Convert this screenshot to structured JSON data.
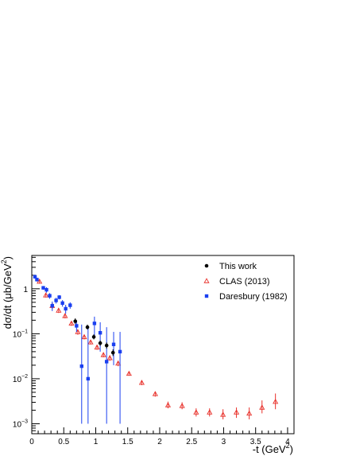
{
  "chart_data": {
    "type": "scatter",
    "title": "",
    "xlabel": "-t (GeV",
    "xlabel_sup": "2",
    "xlabel_tail": ")",
    "ylabel": "dσ/dt (μb/GeV",
    "ylabel_sup": "2",
    "ylabel_tail": ")",
    "xlim": [
      0,
      4.1
    ],
    "ylim": [
      0.0006,
      5.5
    ],
    "yscale": "log",
    "grid": false,
    "legend_position": "top-right",
    "x_ticks": [
      {
        "value": 0,
        "label": "0"
      },
      {
        "value": 0.5,
        "label": "0.5"
      },
      {
        "value": 1,
        "label": "1"
      },
      {
        "value": 1.5,
        "label": "1.5"
      },
      {
        "value": 2,
        "label": "2"
      },
      {
        "value": 2.5,
        "label": "2.5"
      },
      {
        "value": 3,
        "label": "3"
      },
      {
        "value": 3.5,
        "label": "3.5"
      },
      {
        "value": 4,
        "label": "4"
      }
    ],
    "y_ticks": [
      {
        "value": 1,
        "base": "1",
        "exp": ""
      },
      {
        "value": 0.1,
        "base": "10",
        "exp": "−1"
      },
      {
        "value": 0.01,
        "base": "10",
        "exp": "−2"
      },
      {
        "value": 0.001,
        "base": "10",
        "exp": "−3"
      }
    ],
    "series": [
      {
        "name": "This work",
        "marker": "circle",
        "color": "#000000",
        "points": [
          {
            "x": 0.68,
            "y": 0.19,
            "ylo": 0.165,
            "yhi": 0.22
          },
          {
            "x": 0.87,
            "y": 0.14,
            "ylo": 0.125,
            "yhi": 0.16
          },
          {
            "x": 0.97,
            "y": 0.085,
            "ylo": 0.075,
            "yhi": 0.097
          },
          {
            "x": 1.07,
            "y": 0.062,
            "ylo": 0.054,
            "yhi": 0.071
          },
          {
            "x": 1.17,
            "y": 0.055,
            "ylo": 0.047,
            "yhi": 0.064
          },
          {
            "x": 1.27,
            "y": 0.038,
            "ylo": 0.032,
            "yhi": 0.045
          }
        ]
      },
      {
        "name": "CLAS (2013)",
        "marker": "triangle",
        "color": "#e8302a",
        "points": [
          {
            "x": 0.12,
            "y": 1.45,
            "ylo": 1.3,
            "yhi": 1.6
          },
          {
            "x": 0.22,
            "y": 0.72,
            "ylo": 0.64,
            "yhi": 0.8
          },
          {
            "x": 0.32,
            "y": 0.42,
            "ylo": 0.36,
            "yhi": 0.48
          },
          {
            "x": 0.42,
            "y": 0.33,
            "ylo": 0.29,
            "yhi": 0.37
          },
          {
            "x": 0.52,
            "y": 0.25,
            "ylo": 0.22,
            "yhi": 0.28
          },
          {
            "x": 0.62,
            "y": 0.17,
            "ylo": 0.15,
            "yhi": 0.19
          },
          {
            "x": 0.72,
            "y": 0.11,
            "ylo": 0.095,
            "yhi": 0.125
          },
          {
            "x": 0.82,
            "y": 0.085,
            "ylo": 0.075,
            "yhi": 0.095
          },
          {
            "x": 0.92,
            "y": 0.065,
            "ylo": 0.058,
            "yhi": 0.073
          },
          {
            "x": 1.02,
            "y": 0.05,
            "ylo": 0.044,
            "yhi": 0.056
          },
          {
            "x": 1.12,
            "y": 0.034,
            "ylo": 0.03,
            "yhi": 0.038
          },
          {
            "x": 1.22,
            "y": 0.029,
            "ylo": 0.025,
            "yhi": 0.033
          },
          {
            "x": 1.35,
            "y": 0.022,
            "ylo": 0.019,
            "yhi": 0.025
          },
          {
            "x": 1.52,
            "y": 0.013,
            "ylo": 0.0117,
            "yhi": 0.0143
          },
          {
            "x": 1.72,
            "y": 0.0082,
            "ylo": 0.0072,
            "yhi": 0.0092
          },
          {
            "x": 1.93,
            "y": 0.0046,
            "ylo": 0.004,
            "yhi": 0.0052
          },
          {
            "x": 2.13,
            "y": 0.0026,
            "ylo": 0.0022,
            "yhi": 0.0031
          },
          {
            "x": 2.35,
            "y": 0.0025,
            "ylo": 0.0021,
            "yhi": 0.003
          },
          {
            "x": 2.57,
            "y": 0.0018,
            "ylo": 0.00145,
            "yhi": 0.0022
          },
          {
            "x": 2.78,
            "y": 0.0018,
            "ylo": 0.00145,
            "yhi": 0.0022
          },
          {
            "x": 2.99,
            "y": 0.0016,
            "ylo": 0.00125,
            "yhi": 0.0021
          },
          {
            "x": 3.2,
            "y": 0.0018,
            "ylo": 0.00135,
            "yhi": 0.0023
          },
          {
            "x": 3.4,
            "y": 0.0017,
            "ylo": 0.00125,
            "yhi": 0.0023
          },
          {
            "x": 3.6,
            "y": 0.0023,
            "ylo": 0.0017,
            "yhi": 0.0033
          },
          {
            "x": 3.81,
            "y": 0.0031,
            "ylo": 0.0021,
            "yhi": 0.0047
          }
        ]
      },
      {
        "name": "Daresbury (1982)",
        "marker": "square",
        "color": "#1a3ff0",
        "points": [
          {
            "x": 0.05,
            "y": 1.85,
            "ylo": 1.7,
            "yhi": 2.0
          },
          {
            "x": 0.08,
            "y": 1.6,
            "ylo": 1.45,
            "yhi": 1.75
          },
          {
            "x": 0.18,
            "y": 1.05,
            "ylo": 0.95,
            "yhi": 1.15
          },
          {
            "x": 0.23,
            "y": 0.95,
            "ylo": 0.82,
            "yhi": 1.08
          },
          {
            "x": 0.28,
            "y": 0.7,
            "ylo": 0.6,
            "yhi": 0.8
          },
          {
            "x": 0.32,
            "y": 0.42,
            "ylo": 0.32,
            "yhi": 0.52
          },
          {
            "x": 0.38,
            "y": 0.55,
            "ylo": 0.47,
            "yhi": 0.63
          },
          {
            "x": 0.43,
            "y": 0.65,
            "ylo": 0.58,
            "yhi": 0.72
          },
          {
            "x": 0.48,
            "y": 0.48,
            "ylo": 0.4,
            "yhi": 0.56
          },
          {
            "x": 0.53,
            "y": 0.36,
            "ylo": 0.28,
            "yhi": 0.44
          },
          {
            "x": 0.6,
            "y": 0.43,
            "ylo": 0.36,
            "yhi": 0.5
          },
          {
            "x": 0.7,
            "y": 0.15,
            "ylo": 0.11,
            "yhi": 0.19
          },
          {
            "x": 0.78,
            "y": 0.019,
            "ylo": 0.001,
            "yhi": 0.16
          },
          {
            "x": 0.88,
            "y": 0.01,
            "ylo": 0.001,
            "yhi": 0.13
          },
          {
            "x": 0.98,
            "y": 0.17,
            "ylo": 0.09,
            "yhi": 0.24
          },
          {
            "x": 1.07,
            "y": 0.105,
            "ylo": 0.04,
            "yhi": 0.18
          },
          {
            "x": 1.17,
            "y": 0.024,
            "ylo": 0.001,
            "yhi": 0.14
          },
          {
            "x": 1.28,
            "y": 0.058,
            "ylo": 0.02,
            "yhi": 0.11
          },
          {
            "x": 1.38,
            "y": 0.04,
            "ylo": 0.001,
            "yhi": 0.11
          }
        ]
      }
    ]
  }
}
